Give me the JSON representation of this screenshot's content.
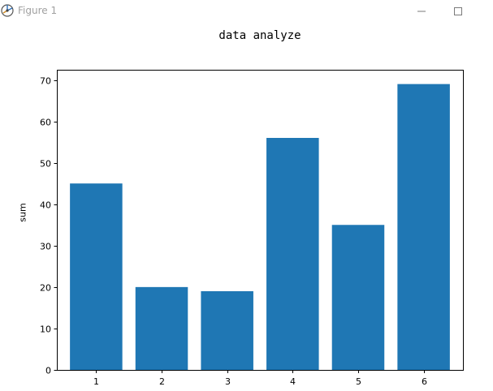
{
  "window": {
    "title": "Figure 1",
    "icon": "matplotlib-figure-icon",
    "controls": [
      "minimize-icon",
      "maximize-icon"
    ]
  },
  "chart_data": {
    "type": "bar",
    "title": "data analyze",
    "xlabel": "",
    "ylabel": "sum",
    "categories": [
      "1",
      "2",
      "3",
      "4",
      "5",
      "6"
    ],
    "values": [
      45,
      20,
      19,
      56,
      35,
      69
    ],
    "ylim": [
      0,
      72.45
    ],
    "yticks": [
      0,
      10,
      20,
      30,
      40,
      50,
      60,
      70
    ],
    "bar_color": "#1f77b4",
    "grid": false
  }
}
